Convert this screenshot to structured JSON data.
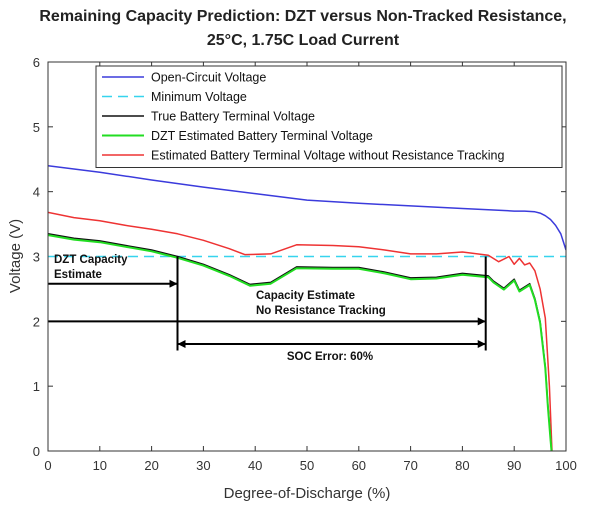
{
  "chart_data": {
    "type": "line",
    "title_line1": "Remaining Capacity Prediction: DZT versus Non-Tracked Resistance,",
    "title_line2": "25°C, 1.75C Load Current",
    "xlabel": "Degree-of-Discharge (%)",
    "ylabel": "Voltage (V)",
    "xlim": [
      0,
      100
    ],
    "ylim": [
      0,
      6
    ],
    "xticks": [
      0,
      10,
      20,
      30,
      40,
      50,
      60,
      70,
      80,
      90,
      100
    ],
    "yticks": [
      0,
      1,
      2,
      3,
      4,
      5,
      6
    ],
    "series": [
      {
        "name": "Open-Circuit Voltage",
        "color": "#3b3bdc",
        "dash": "",
        "x": [
          0,
          10,
          20,
          30,
          40,
          50,
          60,
          70,
          80,
          85,
          88,
          90,
          92,
          94,
          95,
          96,
          97,
          98,
          99,
          100
        ],
        "y": [
          4.4,
          4.3,
          4.18,
          4.07,
          3.97,
          3.87,
          3.82,
          3.78,
          3.74,
          3.72,
          3.71,
          3.7,
          3.7,
          3.69,
          3.67,
          3.63,
          3.57,
          3.48,
          3.35,
          3.1
        ]
      },
      {
        "name": "Minimum Voltage",
        "color": "#36d4ee",
        "dash": "10,6",
        "x": [
          0,
          100
        ],
        "y": [
          3.0,
          3.0
        ]
      },
      {
        "name": "True Battery Terminal Voltage",
        "color": "#111111",
        "dash": "",
        "x": [
          0,
          5,
          10,
          15,
          20,
          25,
          30,
          35,
          39,
          43,
          48,
          55,
          60,
          65,
          70,
          75,
          80,
          85,
          86,
          88,
          90,
          91,
          93,
          94,
          95,
          96,
          96.5,
          97,
          97.2
        ],
        "y": [
          3.35,
          3.28,
          3.24,
          3.17,
          3.1,
          3.0,
          2.88,
          2.72,
          2.57,
          2.6,
          2.84,
          2.83,
          2.83,
          2.76,
          2.67,
          2.68,
          2.74,
          2.7,
          2.62,
          2.51,
          2.65,
          2.48,
          2.58,
          2.35,
          2.0,
          1.3,
          0.7,
          0.2,
          0.0
        ]
      },
      {
        "name": "DZT Estimated Battery Terminal Voltage",
        "color": "#22dd22",
        "dash": "",
        "x": [
          0,
          5,
          10,
          15,
          20,
          25,
          30,
          35,
          39,
          43,
          48,
          55,
          60,
          65,
          70,
          75,
          80,
          85,
          86,
          88,
          90,
          91,
          93,
          94,
          95,
          96,
          96.5,
          97,
          97.2
        ],
        "y": [
          3.33,
          3.26,
          3.22,
          3.15,
          3.08,
          2.98,
          2.86,
          2.7,
          2.55,
          2.58,
          2.82,
          2.81,
          2.81,
          2.74,
          2.65,
          2.66,
          2.72,
          2.68,
          2.6,
          2.49,
          2.63,
          2.46,
          2.56,
          2.33,
          1.98,
          1.28,
          0.68,
          0.18,
          0.0
        ]
      },
      {
        "name": "Estimated Battery Terminal Voltage without Resistance Tracking",
        "color": "#ee3333",
        "dash": "",
        "x": [
          0,
          5,
          10,
          15,
          20,
          25,
          30,
          35,
          38,
          43,
          48,
          55,
          60,
          65,
          70,
          75,
          80,
          85,
          87,
          89,
          90,
          91,
          92,
          93,
          94,
          95,
          96,
          96.8,
          97.3
        ],
        "y": [
          3.68,
          3.6,
          3.55,
          3.48,
          3.42,
          3.35,
          3.25,
          3.12,
          3.03,
          3.04,
          3.18,
          3.17,
          3.15,
          3.1,
          3.04,
          3.04,
          3.07,
          3.02,
          2.92,
          3.0,
          2.88,
          2.97,
          2.87,
          2.9,
          2.78,
          2.5,
          2.05,
          1.0,
          0.0
        ]
      }
    ],
    "annotations": {
      "dzt_capacity_line1": "DZT Capacity",
      "dzt_capacity_line2": "Estimate",
      "no_tracking_line1": "Capacity Estimate",
      "no_tracking_line2": "No Resistance Tracking",
      "soc_error": "SOC Error: 60%",
      "dzt_capacity_x": 25,
      "no_tracking_capacity_x": 84.5,
      "soc_error_arrow_y": 1.65,
      "dzt_arrow_y": 2.58,
      "no_tracking_arrow_y": 2.0
    },
    "grid": false,
    "legend_position": "top-right"
  }
}
